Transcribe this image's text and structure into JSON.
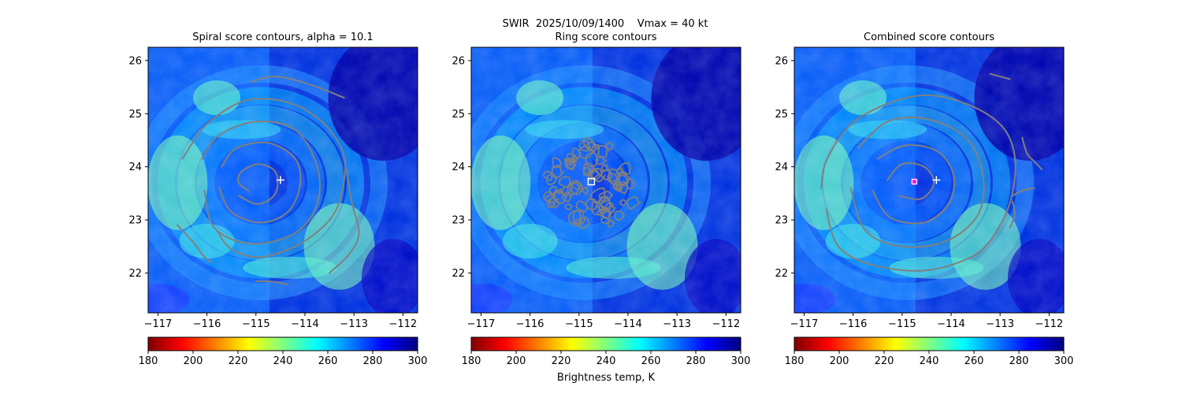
{
  "figure": {
    "suptitle_line1": "SWIR  2025/10/09/1400    Vmax = 40 kt",
    "colorbar_label": "Brightness temp, K",
    "colormap": [
      "#7f0000",
      "#ff0000",
      "#ff8000",
      "#ffff00",
      "#80ff80",
      "#00ffff",
      "#0080ff",
      "#0000ff",
      "#00007f"
    ],
    "contour_color": "#808080",
    "center_marker_color": "#ffffff",
    "combined_marker_color": "#ff00ff"
  },
  "chart_data": [
    {
      "type": "heatmap",
      "title": "Spiral score contours, alpha = 10.1",
      "xlim": [
        -117.2,
        -111.7
      ],
      "ylim": [
        21.25,
        26.25
      ],
      "xticks": [
        -117,
        -116,
        -115,
        -114,
        -113,
        -112
      ],
      "yticks": [
        22,
        23,
        24,
        25,
        26
      ],
      "xtick_labels": [
        "−117",
        "−116",
        "−115",
        "−114",
        "−113",
        "−112"
      ],
      "ytick_labels": [
        "22",
        "23",
        "24",
        "25",
        "26"
      ],
      "colorbar": {
        "range": [
          180,
          300
        ],
        "ticks": [
          180,
          200,
          220,
          240,
          260,
          280,
          300
        ]
      },
      "contours": [
        {
          "points": [
            [
              -115.35,
              23.45
            ],
            [
              -114.95,
              23.3
            ],
            [
              -114.6,
              23.5
            ],
            [
              -114.6,
              23.9
            ],
            [
              -114.95,
              24.05
            ],
            [
              -115.3,
              23.9
            ],
            [
              -115.35,
              23.7
            ],
            [
              -115.15,
              23.55
            ]
          ]
        },
        {
          "points": [
            [
              -115.75,
              23.6
            ],
            [
              -115.5,
              23.15
            ],
            [
              -114.9,
              22.95
            ],
            [
              -114.35,
              23.15
            ],
            [
              -114.1,
              23.65
            ],
            [
              -114.2,
              24.15
            ],
            [
              -114.75,
              24.45
            ],
            [
              -115.4,
              24.35
            ],
            [
              -115.7,
              24.0
            ]
          ]
        },
        {
          "points": [
            [
              -116.05,
              23.55
            ],
            [
              -115.85,
              22.85
            ],
            [
              -115.1,
              22.55
            ],
            [
              -114.2,
              22.75
            ],
            [
              -113.75,
              23.3
            ],
            [
              -113.75,
              24.0
            ],
            [
              -114.2,
              24.7
            ],
            [
              -115.0,
              24.85
            ],
            [
              -115.75,
              24.6
            ],
            [
              -116.1,
              24.15
            ]
          ]
        },
        {
          "points": [
            [
              -116.5,
              24.15
            ],
            [
              -116.0,
              24.8
            ],
            [
              -115.2,
              25.25
            ],
            [
              -114.3,
              25.2
            ],
            [
              -113.6,
              24.8
            ],
            [
              -113.2,
              24.2
            ],
            [
              -113.25,
              23.5
            ],
            [
              -113.5,
              23.0
            ],
            [
              -114.1,
              22.55
            ],
            [
              -114.9,
              22.3
            ],
            [
              -115.5,
              22.45
            ],
            [
              -115.8,
              22.8
            ]
          ]
        },
        {
          "points": [
            [
              -115.1,
              25.6
            ],
            [
              -114.6,
              25.7
            ],
            [
              -113.9,
              25.55
            ],
            [
              -113.2,
              25.3
            ]
          ]
        },
        {
          "points": [
            [
              -113.15,
              23.95
            ],
            [
              -113.05,
              23.35
            ],
            [
              -112.9,
              22.75
            ],
            [
              -113.1,
              22.35
            ],
            [
              -113.5,
              22.0
            ]
          ]
        },
        {
          "points": [
            [
              -116.6,
              22.9
            ],
            [
              -116.3,
              22.6
            ],
            [
              -116.05,
              22.3
            ],
            [
              -115.9,
              22.2
            ]
          ]
        },
        {
          "points": [
            [
              -115.0,
              21.85
            ],
            [
              -114.6,
              21.83
            ],
            [
              -114.35,
              21.78
            ]
          ]
        }
      ],
      "center_marker": {
        "x": -114.5,
        "y": 23.75,
        "style": "plus"
      }
    },
    {
      "type": "heatmap",
      "title": "Ring score contours",
      "xlim": [
        -117.2,
        -111.7
      ],
      "ylim": [
        21.25,
        26.25
      ],
      "xticks": [
        -117,
        -116,
        -115,
        -114,
        -113,
        -112
      ],
      "yticks": [
        22,
        23,
        24,
        25,
        26
      ],
      "xtick_labels": [
        "−117",
        "−116",
        "−115",
        "−114",
        "−113",
        "−112"
      ],
      "ytick_labels": [
        "22",
        "23",
        "24",
        "25",
        "26"
      ],
      "colorbar": {
        "range": [
          180,
          300
        ],
        "ticks": [
          180,
          200,
          220,
          240,
          260,
          280,
          300
        ]
      },
      "contour_region": {
        "cx": -114.75,
        "cy": 23.65,
        "r": 1.0
      },
      "center_marker": {
        "x": -114.75,
        "y": 23.72,
        "style": "square"
      }
    },
    {
      "type": "heatmap",
      "title": "Combined score contours",
      "xlim": [
        -117.2,
        -111.7
      ],
      "ylim": [
        21.25,
        26.25
      ],
      "xticks": [
        -117,
        -116,
        -115,
        -114,
        -113,
        -112
      ],
      "yticks": [
        22,
        23,
        24,
        25,
        26
      ],
      "xtick_labels": [
        "−117",
        "−116",
        "−115",
        "−114",
        "−113",
        "−112"
      ],
      "ytick_labels": [
        "22",
        "23",
        "24",
        "25",
        "26"
      ],
      "colorbar": {
        "range": [
          180,
          300
        ],
        "ticks": [
          180,
          200,
          220,
          240,
          260,
          280,
          300
        ]
      },
      "contours": [
        {
          "points": [
            [
              -115.05,
              23.45
            ],
            [
              -114.6,
              23.4
            ],
            [
              -114.35,
              23.7
            ],
            [
              -114.55,
              24.0
            ],
            [
              -115.0,
              24.05
            ],
            [
              -115.3,
              23.75
            ]
          ]
        },
        {
          "points": [
            [
              -115.6,
              23.55
            ],
            [
              -115.25,
              23.05
            ],
            [
              -114.55,
              22.95
            ],
            [
              -114.05,
              23.3
            ],
            [
              -113.95,
              23.85
            ],
            [
              -114.3,
              24.3
            ],
            [
              -114.95,
              24.4
            ],
            [
              -115.5,
              24.15
            ]
          ]
        },
        {
          "points": [
            [
              -116.05,
              23.6
            ],
            [
              -115.75,
              22.8
            ],
            [
              -115.0,
              22.5
            ],
            [
              -114.1,
              22.6
            ],
            [
              -113.45,
              23.1
            ],
            [
              -113.35,
              23.85
            ],
            [
              -113.7,
              24.55
            ],
            [
              -114.5,
              24.9
            ],
            [
              -115.3,
              24.85
            ],
            [
              -115.9,
              24.35
            ]
          ]
        },
        {
          "points": [
            [
              -116.55,
              23.2
            ],
            [
              -116.3,
              22.5
            ],
            [
              -115.6,
              22.15
            ],
            [
              -114.5,
              22.05
            ],
            [
              -113.5,
              22.35
            ],
            [
              -113.0,
              22.9
            ],
            [
              -112.75,
              23.5
            ],
            [
              -112.7,
              24.2
            ],
            [
              -112.95,
              24.75
            ],
            [
              -113.6,
              25.15
            ],
            [
              -114.5,
              25.35
            ],
            [
              -115.4,
              25.15
            ],
            [
              -116.1,
              24.75
            ],
            [
              -116.55,
              24.1
            ],
            [
              -116.65,
              23.6
            ]
          ]
        },
        {
          "points": [
            [
              -112.55,
              24.55
            ],
            [
              -112.45,
              24.25
            ],
            [
              -112.3,
              24.1
            ],
            [
              -112.15,
              23.95
            ]
          ]
        },
        {
          "points": [
            [
              -112.75,
              23.45
            ],
            [
              -112.55,
              23.55
            ],
            [
              -112.3,
              23.6
            ]
          ]
        },
        {
          "points": [
            [
              -112.75,
              23.35
            ],
            [
              -112.7,
              23.1
            ],
            [
              -112.8,
              22.85
            ]
          ]
        },
        {
          "points": [
            [
              -113.2,
              25.75
            ],
            [
              -112.8,
              25.65
            ]
          ]
        }
      ],
      "center_marker": {
        "x": -114.3,
        "y": 23.75,
        "style": "plus"
      },
      "combined_marker": {
        "x": -114.75,
        "y": 23.72
      }
    }
  ]
}
